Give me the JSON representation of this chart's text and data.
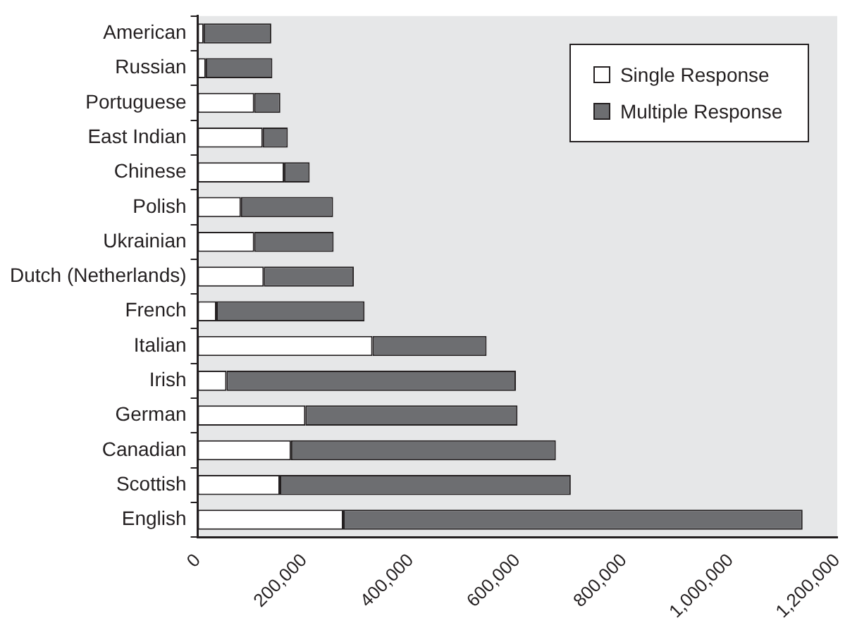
{
  "chart_data": {
    "type": "bar",
    "orientation": "horizontal",
    "stacked": true,
    "categories": [
      "American",
      "Russian",
      "Portuguese",
      "East Indian",
      "Chinese",
      "Polish",
      "Ukrainian",
      "Dutch (Netherlands)",
      "French",
      "Italian",
      "Irish",
      "German",
      "Canadian",
      "Scottish",
      "English"
    ],
    "series": [
      {
        "name": "Single Response",
        "color": "#ffffff",
        "values": [
          11000,
          15000,
          106000,
          122000,
          162000,
          81000,
          106000,
          124000,
          35000,
          328000,
          54000,
          202000,
          175000,
          154000,
          273000
        ]
      },
      {
        "name": "Multiple Response",
        "color": "#6d6e71",
        "values": [
          127000,
          125000,
          49000,
          47000,
          48000,
          173000,
          149000,
          169000,
          278000,
          214000,
          543000,
          398000,
          497000,
          546000,
          862000
        ]
      }
    ],
    "xlim": [
      0,
      1200000
    ],
    "xticks": [
      {
        "value": 0,
        "label": "0"
      },
      {
        "value": 200000,
        "label": "200,000"
      },
      {
        "value": 400000,
        "label": "400,000"
      },
      {
        "value": 600000,
        "label": "600,000"
      },
      {
        "value": 800000,
        "label": "800,000"
      },
      {
        "value": 1000000,
        "label": "1,000,000"
      },
      {
        "value": 1200000,
        "label": "1,200,000"
      }
    ],
    "grid": false,
    "legend": "top right"
  }
}
